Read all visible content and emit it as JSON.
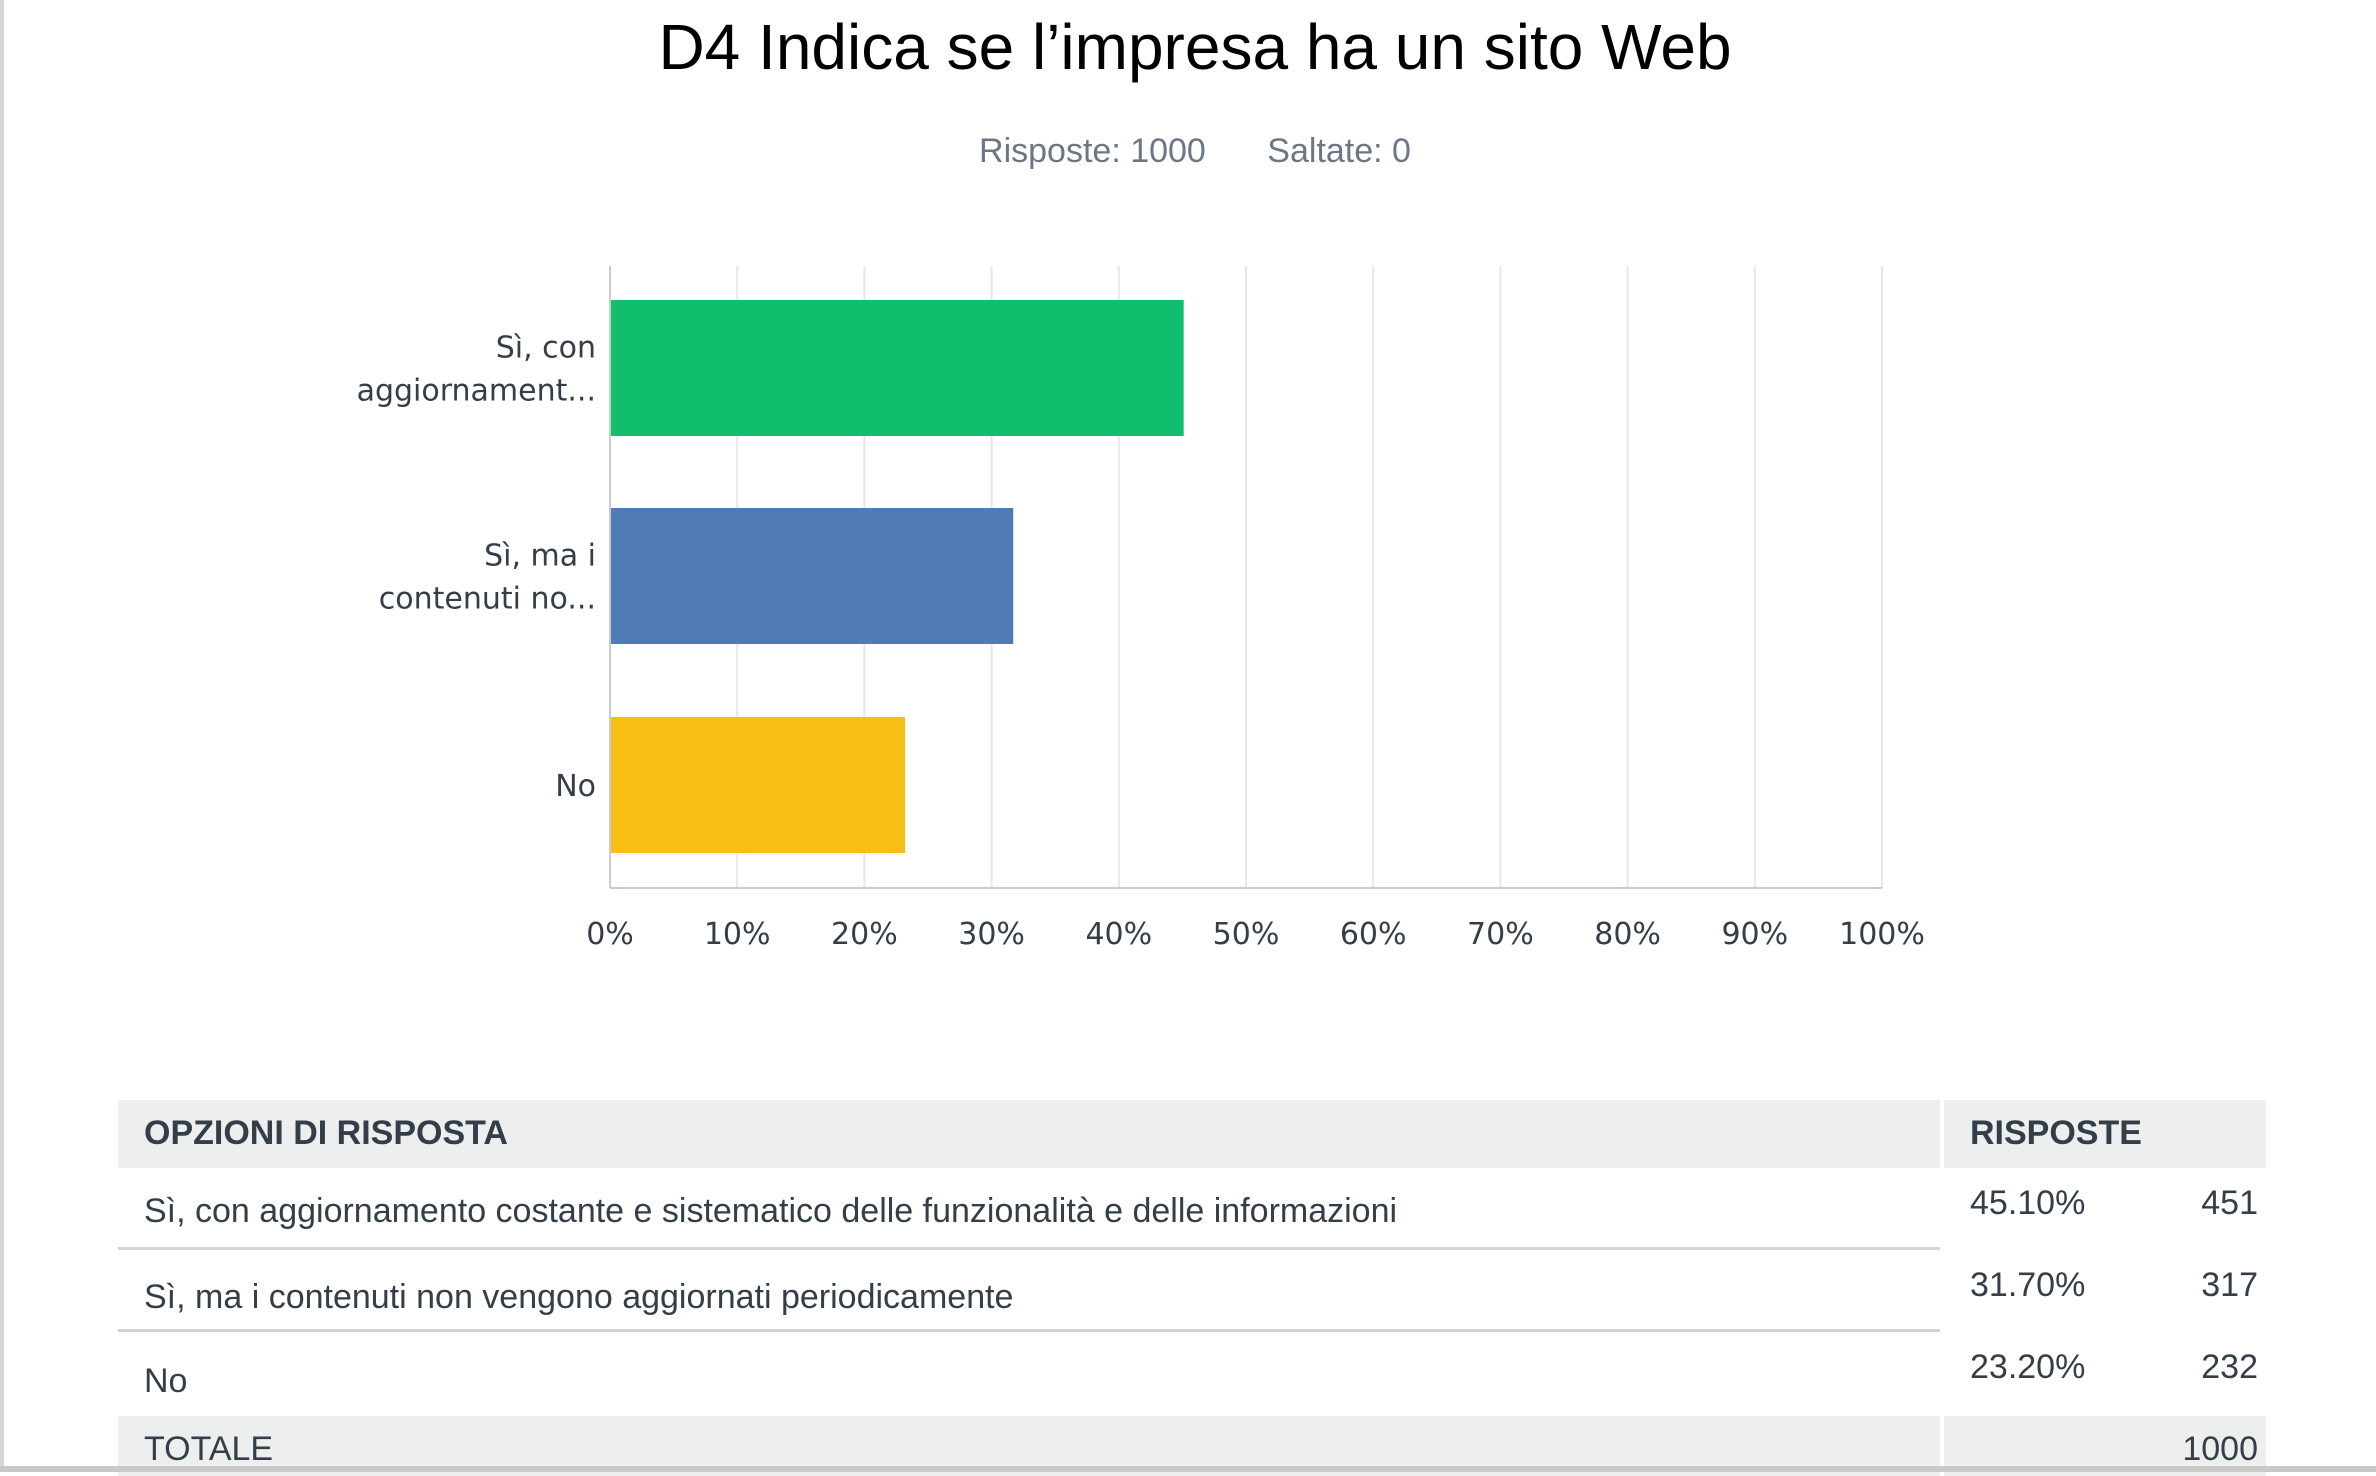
{
  "title": "D4 Indica se l’impresa ha un sito Web",
  "stats": {
    "answered": "Risposte: 1000",
    "skipped": "Saltate: 0"
  },
  "chart_data": {
    "type": "bar",
    "orientation": "horizontal",
    "categories": [
      [
        "Sì, con",
        "aggiornament..."
      ],
      [
        "Sì, ma i",
        "contenuti no..."
      ],
      [
        "No"
      ]
    ],
    "values": [
      45.1,
      31.7,
      23.2
    ],
    "colors": [
      "#0fbf6e",
      "#507cb6",
      "#f9be15"
    ],
    "xlim": [
      0,
      100
    ],
    "ticks": [
      "0%",
      "10%",
      "20%",
      "30%",
      "40%",
      "50%",
      "60%",
      "70%",
      "80%",
      "90%",
      "100%"
    ],
    "grid": true,
    "title": "D4 Indica se l’impresa ha un sito Web",
    "xlabel": "",
    "ylabel": ""
  },
  "table": {
    "header_options": "OPZIONI DI RISPOSTA",
    "header_responses": "RISPOSTE",
    "rows": [
      {
        "label": "Sì, con aggiornamento costante e sistematico delle funzionalità e delle informazioni",
        "percent": "45.10%",
        "count": "451"
      },
      {
        "label": "Sì, ma i contenuti non vengono aggiornati periodicamente",
        "percent": "31.70%",
        "count": "317"
      },
      {
        "label": "No",
        "percent": "23.20%",
        "count": "232"
      }
    ],
    "total_label": "TOTALE",
    "total_count": "1000"
  }
}
